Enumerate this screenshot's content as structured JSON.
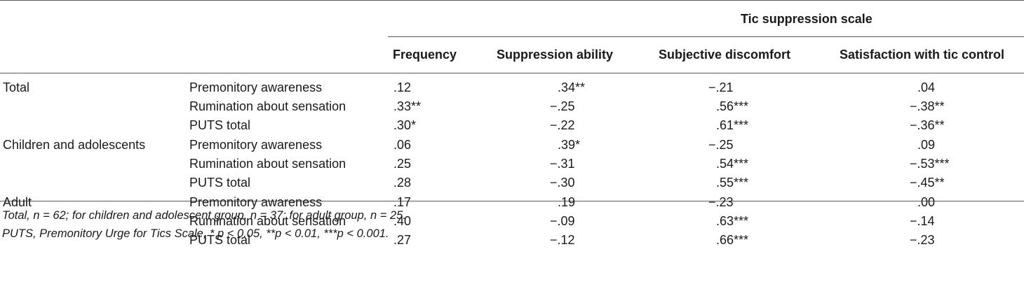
{
  "table": {
    "spanning_header": "Tic suppression scale",
    "columns": [
      "Frequency",
      "Suppression ability",
      "Subjective discomfort",
      "Satisfaction with tic control"
    ],
    "groups": [
      {
        "label": "Total",
        "rows": [
          {
            "measure": "Premonitory awareness",
            "values": [
              ".12",
              ".34**",
              "−.21",
              ".04"
            ]
          },
          {
            "measure": "Rumination about sensation",
            "values": [
              ".33**",
              "−.25",
              ".56***",
              "−.38**"
            ]
          },
          {
            "measure": "PUTS total",
            "values": [
              ".30*",
              "−.22",
              ".61***",
              "−.36**"
            ]
          }
        ]
      },
      {
        "label": "Children and adolescents",
        "rows": [
          {
            "measure": "Premonitory awareness",
            "values": [
              ".06",
              ".39*",
              "−.25",
              ".09"
            ]
          },
          {
            "measure": "Rumination about sensation",
            "values": [
              ".25",
              "−.31",
              ".54***",
              "−.53***"
            ]
          },
          {
            "measure": "PUTS total",
            "values": [
              ".28",
              "−.30",
              ".55***",
              "−.45**"
            ]
          }
        ]
      },
      {
        "label": "Adult",
        "rows": [
          {
            "measure": "Premonitory awareness",
            "values": [
              ".17",
              ".19",
              "−.23",
              ".00"
            ]
          },
          {
            "measure": "Rumination about sensation",
            "values": [
              ".40",
              "−.09",
              ".63***",
              "−.14"
            ]
          },
          {
            "measure": "PUTS total",
            "values": [
              ".27",
              "−.12",
              ".66***",
              "−.23"
            ]
          }
        ]
      }
    ]
  },
  "footnotes": [
    "Total, n = 62; for children and adolescent group, n = 37; for adult group, n = 25.",
    "PUTS, Premonitory Urge for Tics Scale, * p < 0.05, **p < 0.01, ***p < 0.001."
  ]
}
